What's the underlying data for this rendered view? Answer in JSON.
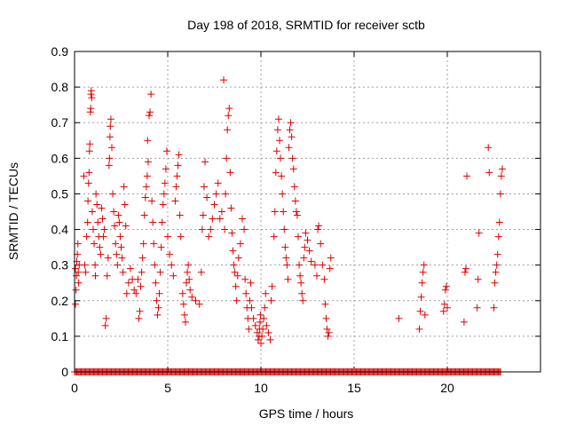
{
  "chart_data": {
    "type": "scatter",
    "title": "Day 198 of 2018, SRMTID for receiver sctb",
    "xlabel": "GPS time / hours",
    "ylabel": "SRMTID / TECUs",
    "xlim": [
      0,
      25
    ],
    "ylim": [
      0,
      0.9
    ],
    "xticks": [
      0,
      5,
      10,
      15,
      20
    ],
    "yticks": [
      0,
      0.1,
      0.2,
      0.3,
      0.4,
      0.5,
      0.6,
      0.7,
      0.8,
      0.9
    ],
    "xtick_labels": [
      "0",
      "5",
      "10",
      "15",
      "20"
    ],
    "ytick_labels": [
      "0",
      "0.1",
      "0.2",
      "0.3",
      "0.4",
      "0.5",
      "0.6",
      "0.7",
      "0.8",
      "0.9"
    ],
    "grid": true,
    "marker": "+",
    "color": "#dd0000",
    "series": [
      {
        "name": "SRMTID",
        "points": [
          [
            0.05,
            0.19
          ],
          [
            0.05,
            0.29
          ],
          [
            0.08,
            0.23
          ],
          [
            0.1,
            0.27
          ],
          [
            0.12,
            0.31
          ],
          [
            0.15,
            0.33
          ],
          [
            0.18,
            0.36
          ],
          [
            0.2,
            0.28
          ],
          [
            0.22,
            0.25
          ],
          [
            0.25,
            0.3
          ],
          [
            0.5,
            0.55
          ],
          [
            0.55,
            0.3
          ],
          [
            0.6,
            0.28
          ],
          [
            0.65,
            0.38
          ],
          [
            0.7,
            0.42
          ],
          [
            0.72,
            0.48
          ],
          [
            0.75,
            0.53
          ],
          [
            0.78,
            0.56
          ],
          [
            0.8,
            0.62
          ],
          [
            0.82,
            0.64
          ],
          [
            0.85,
            0.73
          ],
          [
            0.87,
            0.74
          ],
          [
            0.88,
            0.78
          ],
          [
            0.9,
            0.79
          ],
          [
            0.92,
            0.77
          ],
          [
            0.95,
            0.45
          ],
          [
            1.0,
            0.4
          ],
          [
            1.05,
            0.36
          ],
          [
            1.1,
            0.3
          ],
          [
            1.12,
            0.27
          ],
          [
            1.15,
            0.5
          ],
          [
            1.2,
            0.47
          ],
          [
            1.25,
            0.42
          ],
          [
            1.3,
            0.38
          ],
          [
            1.35,
            0.35
          ],
          [
            1.4,
            0.33
          ],
          [
            1.45,
            0.46
          ],
          [
            1.5,
            0.43
          ],
          [
            1.55,
            0.38
          ],
          [
            1.6,
            0.4
          ],
          [
            1.65,
            0.13
          ],
          [
            1.7,
            0.15
          ],
          [
            1.75,
            0.27
          ],
          [
            1.8,
            0.32
          ],
          [
            1.85,
            0.58
          ],
          [
            1.87,
            0.6
          ],
          [
            1.9,
            0.66
          ],
          [
            1.92,
            0.69
          ],
          [
            1.95,
            0.71
          ],
          [
            2.0,
            0.63
          ],
          [
            2.05,
            0.5
          ],
          [
            2.1,
            0.45
          ],
          [
            2.15,
            0.41
          ],
          [
            2.2,
            0.36
          ],
          [
            2.25,
            0.33
          ],
          [
            2.3,
            0.3
          ],
          [
            2.35,
            0.44
          ],
          [
            2.4,
            0.42
          ],
          [
            2.45,
            0.38
          ],
          [
            2.5,
            0.35
          ],
          [
            2.55,
            0.32
          ],
          [
            2.6,
            0.28
          ],
          [
            2.65,
            0.52
          ],
          [
            2.7,
            0.47
          ],
          [
            2.75,
            0.41
          ],
          [
            2.8,
            0.22
          ],
          [
            2.9,
            0.25
          ],
          [
            3.0,
            0.29
          ],
          [
            3.1,
            0.26
          ],
          [
            3.2,
            0.23
          ],
          [
            3.3,
            0.22
          ],
          [
            3.4,
            0.26
          ],
          [
            3.45,
            0.15
          ],
          [
            3.5,
            0.17
          ],
          [
            3.55,
            0.24
          ],
          [
            3.6,
            0.28
          ],
          [
            3.65,
            0.32
          ],
          [
            3.7,
            0.36
          ],
          [
            3.75,
            0.44
          ],
          [
            3.8,
            0.49
          ],
          [
            3.85,
            0.52
          ],
          [
            3.9,
            0.55
          ],
          [
            3.92,
            0.65
          ],
          [
            3.95,
            0.59
          ],
          [
            4.0,
            0.72
          ],
          [
            4.05,
            0.73
          ],
          [
            4.1,
            0.78
          ],
          [
            4.15,
            0.48
          ],
          [
            4.2,
            0.42
          ],
          [
            4.25,
            0.36
          ],
          [
            4.3,
            0.3
          ],
          [
            4.35,
            0.25
          ],
          [
            4.4,
            0.2
          ],
          [
            4.45,
            0.16
          ],
          [
            4.5,
            0.18
          ],
          [
            4.55,
            0.22
          ],
          [
            4.6,
            0.28
          ],
          [
            4.65,
            0.35
          ],
          [
            4.7,
            0.42
          ],
          [
            4.75,
            0.47
          ],
          [
            4.8,
            0.5
          ],
          [
            4.85,
            0.53
          ],
          [
            4.9,
            0.57
          ],
          [
            4.95,
            0.62
          ],
          [
            5.0,
            0.38
          ],
          [
            5.1,
            0.33
          ],
          [
            5.2,
            0.3
          ],
          [
            5.3,
            0.27
          ],
          [
            5.4,
            0.48
          ],
          [
            5.45,
            0.52
          ],
          [
            5.5,
            0.55
          ],
          [
            5.55,
            0.58
          ],
          [
            5.6,
            0.61
          ],
          [
            5.65,
            0.44
          ],
          [
            5.7,
            0.38
          ],
          [
            5.8,
            0.22
          ],
          [
            5.85,
            0.19
          ],
          [
            5.9,
            0.16
          ],
          [
            5.95,
            0.14
          ],
          [
            6.0,
            0.25
          ],
          [
            6.05,
            0.28
          ],
          [
            6.1,
            0.3
          ],
          [
            6.15,
            0.26
          ],
          [
            6.2,
            0.23
          ],
          [
            6.3,
            0.21
          ],
          [
            6.5,
            0.2
          ],
          [
            6.7,
            0.19
          ],
          [
            6.8,
            0.28
          ],
          [
            6.85,
            0.4
          ],
          [
            6.9,
            0.44
          ],
          [
            6.95,
            0.52
          ],
          [
            7.0,
            0.59
          ],
          [
            7.1,
            0.49
          ],
          [
            7.2,
            0.38
          ],
          [
            7.3,
            0.4
          ],
          [
            7.4,
            0.43
          ],
          [
            7.5,
            0.47
          ],
          [
            7.6,
            0.5
          ],
          [
            7.7,
            0.53
          ],
          [
            7.8,
            0.43
          ],
          [
            7.9,
            0.45
          ],
          [
            8.0,
            0.82
          ],
          [
            8.05,
            0.4
          ],
          [
            8.1,
            0.5
          ],
          [
            8.15,
            0.6
          ],
          [
            8.2,
            0.68
          ],
          [
            8.25,
            0.72
          ],
          [
            8.3,
            0.74
          ],
          [
            8.35,
            0.56
          ],
          [
            8.4,
            0.46
          ],
          [
            8.45,
            0.39
          ],
          [
            8.5,
            0.34
          ],
          [
            8.55,
            0.3
          ],
          [
            8.6,
            0.28
          ],
          [
            8.65,
            0.24
          ],
          [
            8.7,
            0.2
          ],
          [
            8.75,
            0.27
          ],
          [
            8.8,
            0.32
          ],
          [
            8.9,
            0.36
          ],
          [
            9.0,
            0.43
          ],
          [
            9.1,
            0.4
          ],
          [
            9.15,
            0.26
          ],
          [
            9.2,
            0.22
          ],
          [
            9.25,
            0.18
          ],
          [
            9.3,
            0.15
          ],
          [
            9.35,
            0.12
          ],
          [
            9.4,
            0.2
          ],
          [
            9.45,
            0.25
          ],
          [
            9.5,
            0.18
          ],
          [
            9.6,
            0.15
          ],
          [
            9.7,
            0.13
          ],
          [
            9.8,
            0.11
          ],
          [
            9.85,
            0.09
          ],
          [
            9.9,
            0.1
          ],
          [
            9.92,
            0.12
          ],
          [
            9.95,
            0.14
          ],
          [
            9.97,
            0.16
          ],
          [
            10.0,
            0.08
          ],
          [
            10.05,
            0.1
          ],
          [
            10.1,
            0.12
          ],
          [
            10.15,
            0.15
          ],
          [
            10.2,
            0.18
          ],
          [
            10.25,
            0.22
          ],
          [
            10.3,
            0.13
          ],
          [
            10.4,
            0.11
          ],
          [
            10.5,
            0.09
          ],
          [
            10.55,
            0.2
          ],
          [
            10.6,
            0.24
          ],
          [
            10.7,
            0.38
          ],
          [
            10.75,
            0.45
          ],
          [
            10.8,
            0.56
          ],
          [
            10.85,
            0.62
          ],
          [
            10.9,
            0.68
          ],
          [
            10.95,
            0.71
          ],
          [
            11.0,
            0.65
          ],
          [
            11.05,
            0.6
          ],
          [
            11.1,
            0.55
          ],
          [
            11.15,
            0.5
          ],
          [
            11.2,
            0.45
          ],
          [
            11.25,
            0.4
          ],
          [
            11.3,
            0.35
          ],
          [
            11.35,
            0.32
          ],
          [
            11.4,
            0.3
          ],
          [
            11.45,
            0.26
          ],
          [
            11.5,
            0.63
          ],
          [
            11.55,
            0.68
          ],
          [
            11.6,
            0.7
          ],
          [
            11.65,
            0.66
          ],
          [
            11.7,
            0.6
          ],
          [
            11.75,
            0.57
          ],
          [
            11.8,
            0.52
          ],
          [
            11.85,
            0.48
          ],
          [
            11.9,
            0.45
          ],
          [
            11.95,
            0.44
          ],
          [
            12.0,
            0.38
          ],
          [
            12.05,
            0.3
          ],
          [
            12.1,
            0.27
          ],
          [
            12.15,
            0.25
          ],
          [
            12.2,
            0.22
          ],
          [
            12.25,
            0.2
          ],
          [
            12.3,
            0.32
          ],
          [
            12.35,
            0.35
          ],
          [
            12.4,
            0.39
          ],
          [
            12.5,
            0.37
          ],
          [
            12.6,
            0.34
          ],
          [
            12.7,
            0.31
          ],
          [
            12.9,
            0.3
          ],
          [
            13.0,
            0.27
          ],
          [
            13.05,
            0.4
          ],
          [
            13.1,
            0.41
          ],
          [
            13.2,
            0.36
          ],
          [
            13.3,
            0.3
          ],
          [
            13.4,
            0.26
          ],
          [
            13.45,
            0.19
          ],
          [
            13.5,
            0.15
          ],
          [
            13.55,
            0.12
          ],
          [
            13.6,
            0.1
          ],
          [
            13.65,
            0.11
          ],
          [
            13.7,
            0.29
          ],
          [
            13.75,
            0.32
          ],
          [
            17.4,
            0.15
          ],
          [
            18.5,
            0.12
          ],
          [
            18.55,
            0.17
          ],
          [
            18.6,
            0.21
          ],
          [
            18.65,
            0.25
          ],
          [
            18.7,
            0.28
          ],
          [
            18.75,
            0.3
          ],
          [
            18.8,
            0.16
          ],
          [
            19.8,
            0.17
          ],
          [
            19.85,
            0.19
          ],
          [
            19.9,
            0.23
          ],
          [
            19.95,
            0.24
          ],
          [
            20.0,
            0.18
          ],
          [
            20.9,
            0.14
          ],
          [
            20.95,
            0.28
          ],
          [
            21.0,
            0.29
          ],
          [
            21.05,
            0.55
          ],
          [
            21.6,
            0.18
          ],
          [
            21.65,
            0.26
          ],
          [
            21.7,
            0.39
          ],
          [
            22.2,
            0.63
          ],
          [
            22.25,
            0.56
          ],
          [
            22.5,
            0.18
          ],
          [
            22.55,
            0.25
          ],
          [
            22.6,
            0.28
          ],
          [
            22.65,
            0.3
          ],
          [
            22.7,
            0.33
          ],
          [
            22.75,
            0.38
          ],
          [
            22.8,
            0.42
          ],
          [
            22.85,
            0.5
          ],
          [
            22.9,
            0.55
          ],
          [
            22.95,
            0.57
          ]
        ],
        "zero_points": [
          0.0,
          22.9
        ]
      }
    ]
  }
}
